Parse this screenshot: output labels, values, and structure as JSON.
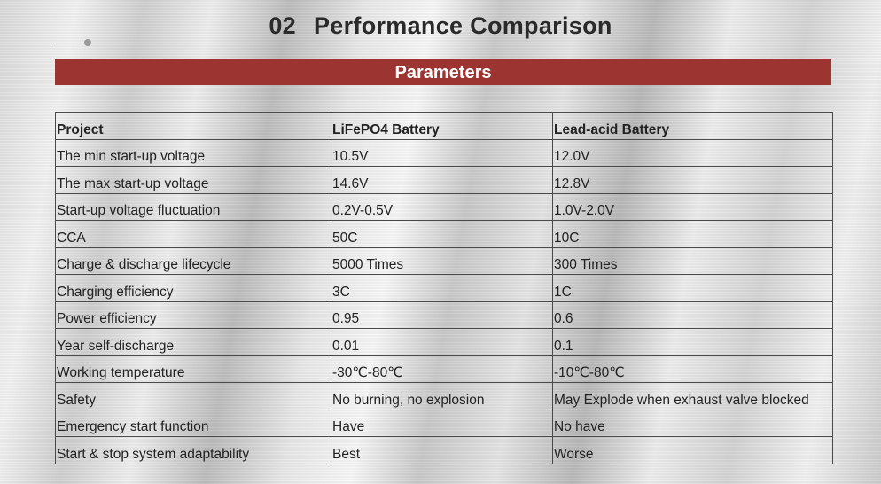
{
  "header": {
    "number": "02",
    "title": "Performance Comparison"
  },
  "banner": {
    "label": "Parameters"
  },
  "table": {
    "columns": [
      "Project",
      "LiFePO4 Battery",
      "Lead-acid Battery"
    ],
    "rows": [
      [
        "The min start-up voltage",
        "10.5V",
        "12.0V"
      ],
      [
        "The max start-up voltage",
        "14.6V",
        "12.8V"
      ],
      [
        "Start-up voltage fluctuation",
        "0.2V-0.5V",
        "1.0V-2.0V"
      ],
      [
        "CCA",
        "50C",
        "10C"
      ],
      [
        "Charge & discharge lifecycle",
        "5000 Times",
        "300 Times"
      ],
      [
        "Charging efficiency",
        "3C",
        "1C"
      ],
      [
        "Power efficiency",
        "0.95",
        "0.6"
      ],
      [
        "Year self-discharge",
        "0.01",
        "0.1"
      ],
      [
        "Working temperature",
        "-30℃-80℃",
        "-10℃-80℃"
      ],
      [
        "Safety",
        "No burning, no explosion",
        "May Explode when exhaust valve blocked"
      ],
      [
        "Emergency start function",
        "Have",
        "No have"
      ],
      [
        "Start & stop system adaptability",
        "Best",
        "Worse"
      ]
    ]
  },
  "colors": {
    "banner_bg": "#9c3532",
    "banner_text": "#ffffff",
    "title_text": "#2a2a2a"
  }
}
